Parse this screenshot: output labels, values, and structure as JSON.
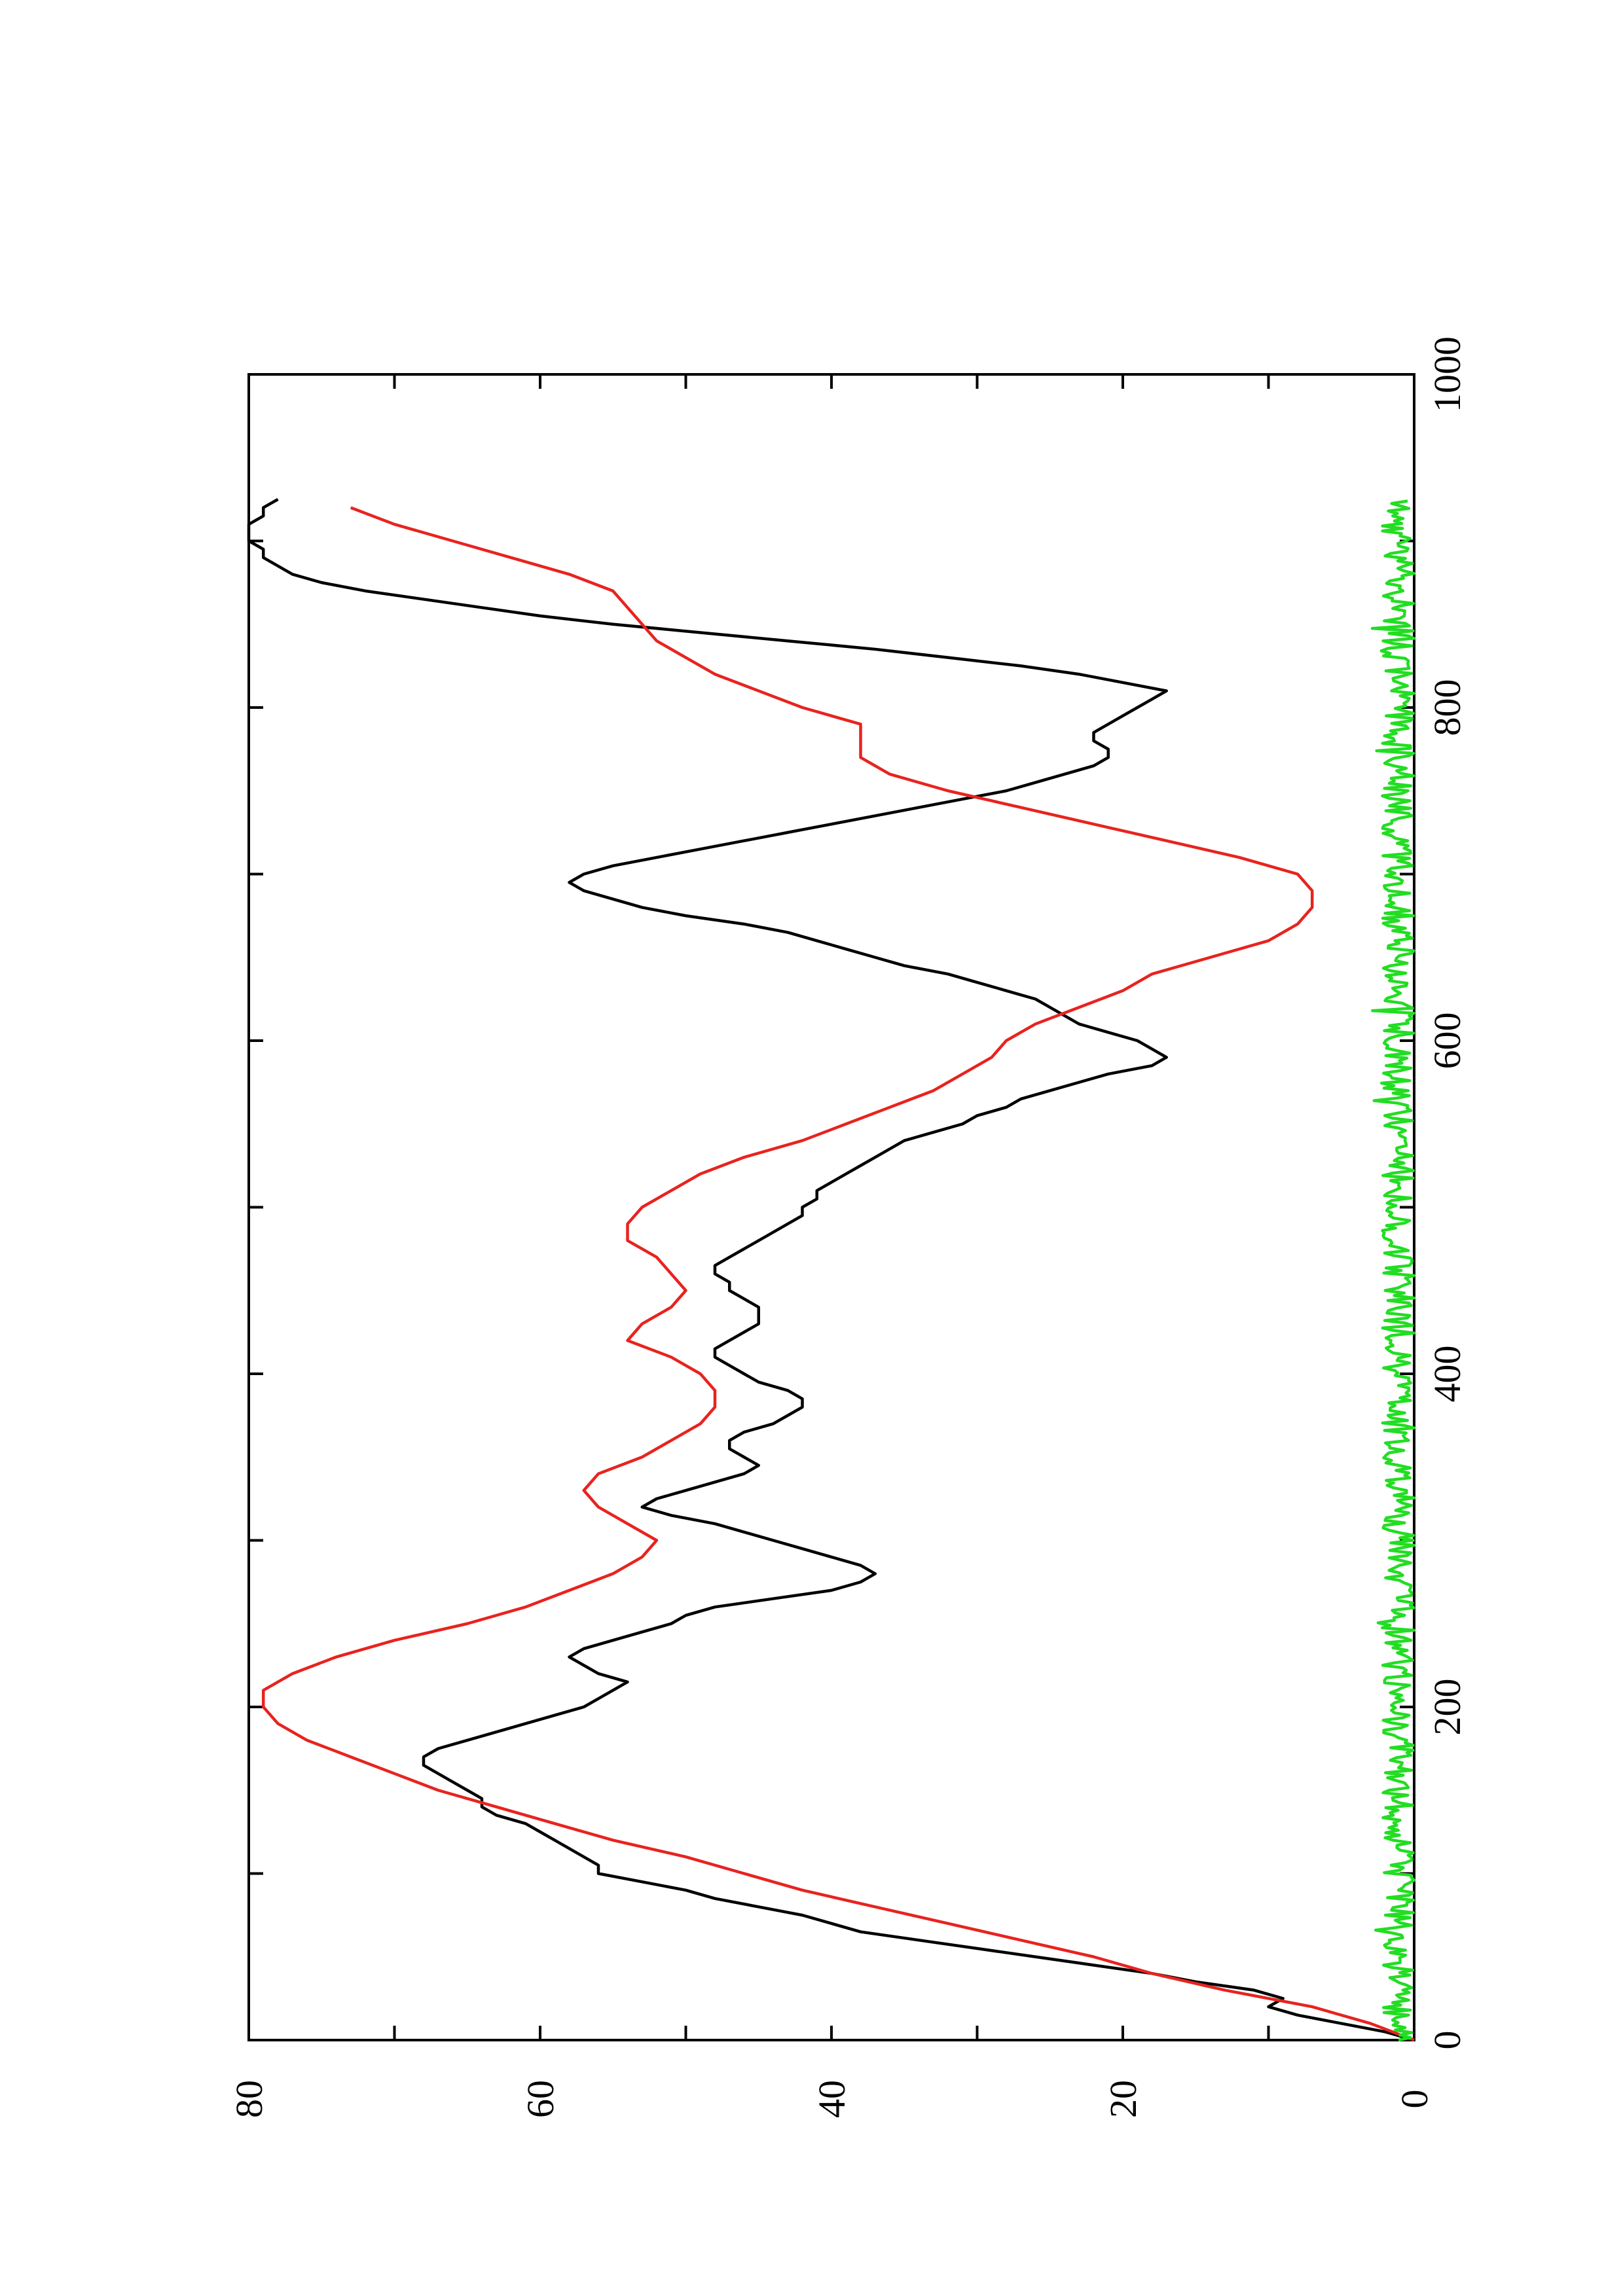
{
  "chart_data": {
    "type": "line",
    "title": "",
    "xlabel": "",
    "ylabel": "",
    "orientation": "rotated-90-clockwise",
    "xlim": [
      0,
      1000
    ],
    "ylim": [
      0,
      80
    ],
    "x_ticks": [
      "0",
      "200",
      "400",
      "600",
      "800",
      "1000"
    ],
    "y_ticks": [
      "0",
      "20",
      "40",
      "60",
      "80"
    ],
    "x_minor_step": 100,
    "y_minor_step": 10,
    "grid": false,
    "legend": "none",
    "series": [
      {
        "color": "#000000",
        "style": "line",
        "x": [
          0,
          5,
          10,
          15,
          20,
          25,
          30,
          35,
          40,
          45,
          50,
          55,
          60,
          65,
          70,
          75,
          80,
          85,
          90,
          95,
          100,
          105,
          110,
          115,
          120,
          125,
          130,
          135,
          140,
          145,
          150,
          155,
          160,
          165,
          170,
          175,
          180,
          185,
          190,
          195,
          200,
          205,
          210,
          215,
          220,
          225,
          230,
          235,
          240,
          245,
          250,
          255,
          260,
          265,
          270,
          275,
          280,
          285,
          290,
          295,
          300,
          305,
          310,
          315,
          320,
          325,
          330,
          335,
          340,
          345,
          350,
          355,
          360,
          365,
          370,
          375,
          380,
          385,
          390,
          395,
          400,
          405,
          410,
          415,
          420,
          425,
          430,
          435,
          440,
          445,
          450,
          455,
          460,
          465,
          470,
          475,
          480,
          485,
          490,
          495,
          500,
          505,
          510,
          515,
          520,
          525,
          530,
          535,
          540,
          545,
          550,
          555,
          560,
          565,
          570,
          575,
          580,
          585,
          590,
          595,
          600,
          605,
          610,
          615,
          620,
          625,
          630,
          635,
          640,
          645,
          650,
          655,
          660,
          665,
          670,
          675,
          680,
          685,
          690,
          695,
          700,
          705,
          710,
          715,
          720,
          725,
          730,
          735,
          740,
          745,
          750,
          755,
          760,
          765,
          770,
          775,
          780,
          785,
          790,
          795,
          800,
          805,
          810,
          815,
          820,
          825,
          830,
          835,
          840,
          845,
          850,
          855,
          860,
          865,
          870,
          875,
          880,
          885,
          890,
          895,
          900,
          905,
          910,
          915,
          920,
          925
        ],
        "y": [
          0,
          2,
          5,
          8,
          10,
          9,
          11,
          15,
          18,
          22,
          26,
          30,
          34,
          38,
          40,
          42,
          45,
          48,
          50,
          53,
          56,
          56,
          57,
          58,
          59,
          60,
          61,
          63,
          64,
          64,
          65,
          66,
          67,
          68,
          68,
          67,
          65,
          63,
          61,
          59,
          57,
          56,
          55,
          54,
          56,
          57,
          58,
          57,
          55,
          53,
          51,
          50,
          48,
          44,
          40,
          38,
          37,
          38,
          40,
          42,
          44,
          46,
          48,
          51,
          53,
          52,
          50,
          48,
          46,
          45,
          46,
          47,
          47,
          46,
          44,
          43,
          42,
          42,
          43,
          45,
          46,
          47,
          48,
          48,
          47,
          46,
          45,
          45,
          45,
          46,
          47,
          47,
          48,
          48,
          47,
          46,
          45,
          44,
          43,
          42,
          42,
          41,
          41,
          40,
          39,
          38,
          37,
          36,
          35,
          33,
          31,
          30,
          28,
          27,
          25,
          23,
          21,
          18,
          17,
          18,
          19,
          21,
          23,
          24,
          25,
          26,
          28,
          30,
          32,
          35,
          37,
          39,
          41,
          43,
          46,
          50,
          53,
          55,
          57,
          58,
          57,
          55,
          52,
          49,
          46,
          43,
          40,
          37,
          34,
          31,
          28,
          26,
          24,
          22,
          21,
          21,
          22,
          22,
          21,
          20,
          19,
          18,
          17,
          20,
          23,
          27,
          32,
          37,
          43,
          49,
          55,
          60,
          64,
          68,
          72,
          75,
          77,
          78,
          79,
          79,
          80,
          80,
          80,
          79,
          79,
          78
        ],
        "note": "x positions and y values sampled from the black curve"
      }
    ]
  }
}
